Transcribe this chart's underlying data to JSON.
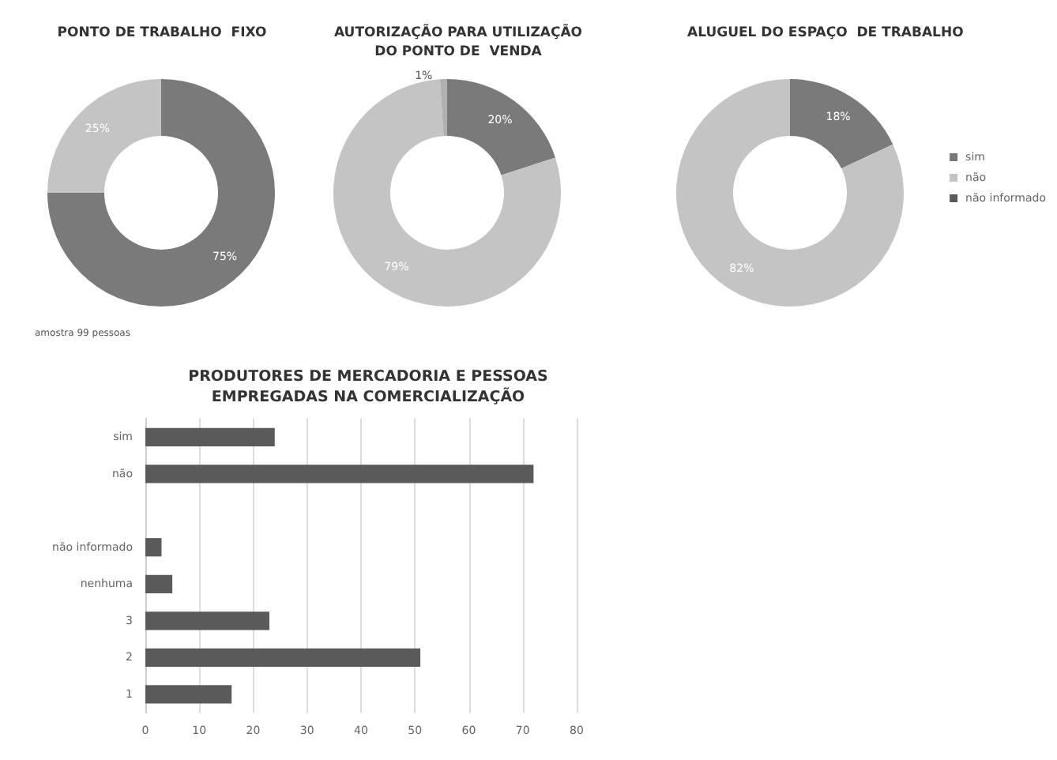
{
  "chart_data": [
    {
      "type": "donut",
      "title": "PONTO DE TRABALHO  FIXO",
      "categories": [
        null,
        null
      ],
      "values": [
        75,
        25
      ],
      "colors": [
        "#7a7a7a",
        "#c4c4c4"
      ],
      "value_labels": [
        "75%",
        "25%"
      ],
      "legend": false,
      "annotations": [
        "amostra 99 pessoas"
      ]
    },
    {
      "type": "donut",
      "title": "AUTORIZAÇÃO PARA UTILIZAÇÃO\nDO PONTO DE  VENDA",
      "categories": [
        null,
        null,
        null
      ],
      "values": [
        20,
        79,
        1
      ],
      "colors": [
        "#7a7a7a",
        "#c4c4c4",
        "#b0b0b0"
      ],
      "value_labels": [
        "20%",
        "79%",
        "1%"
      ],
      "legend": false
    },
    {
      "type": "donut",
      "title": "ALUGUEL DO ESPAÇO  DE TRABALHO",
      "categories": [
        "sim",
        "não",
        "não informado"
      ],
      "values": [
        18,
        82,
        0
      ],
      "colors": [
        "#7a7a7a",
        "#c4c4c4",
        "#5a5a5a"
      ],
      "value_labels": [
        "18%",
        "82%",
        null
      ],
      "legend": "right"
    },
    {
      "type": "bar",
      "orientation": "horizontal",
      "title": "PRODUTORES DE MERCADORIA E PESSOAS\nEMPREGADAS NA COMERCIALIZAÇÃO",
      "categories": [
        "sim",
        "não",
        null,
        "não informado",
        "nenhuma",
        "3",
        "2",
        "1"
      ],
      "values": [
        24,
        72,
        null,
        3,
        5,
        23,
        51,
        16
      ],
      "color": "#5a5a5a",
      "xlim": [
        0,
        80
      ],
      "xticks": [
        0,
        10,
        20,
        30,
        40,
        50,
        60,
        70,
        80
      ],
      "grid": "x"
    }
  ]
}
